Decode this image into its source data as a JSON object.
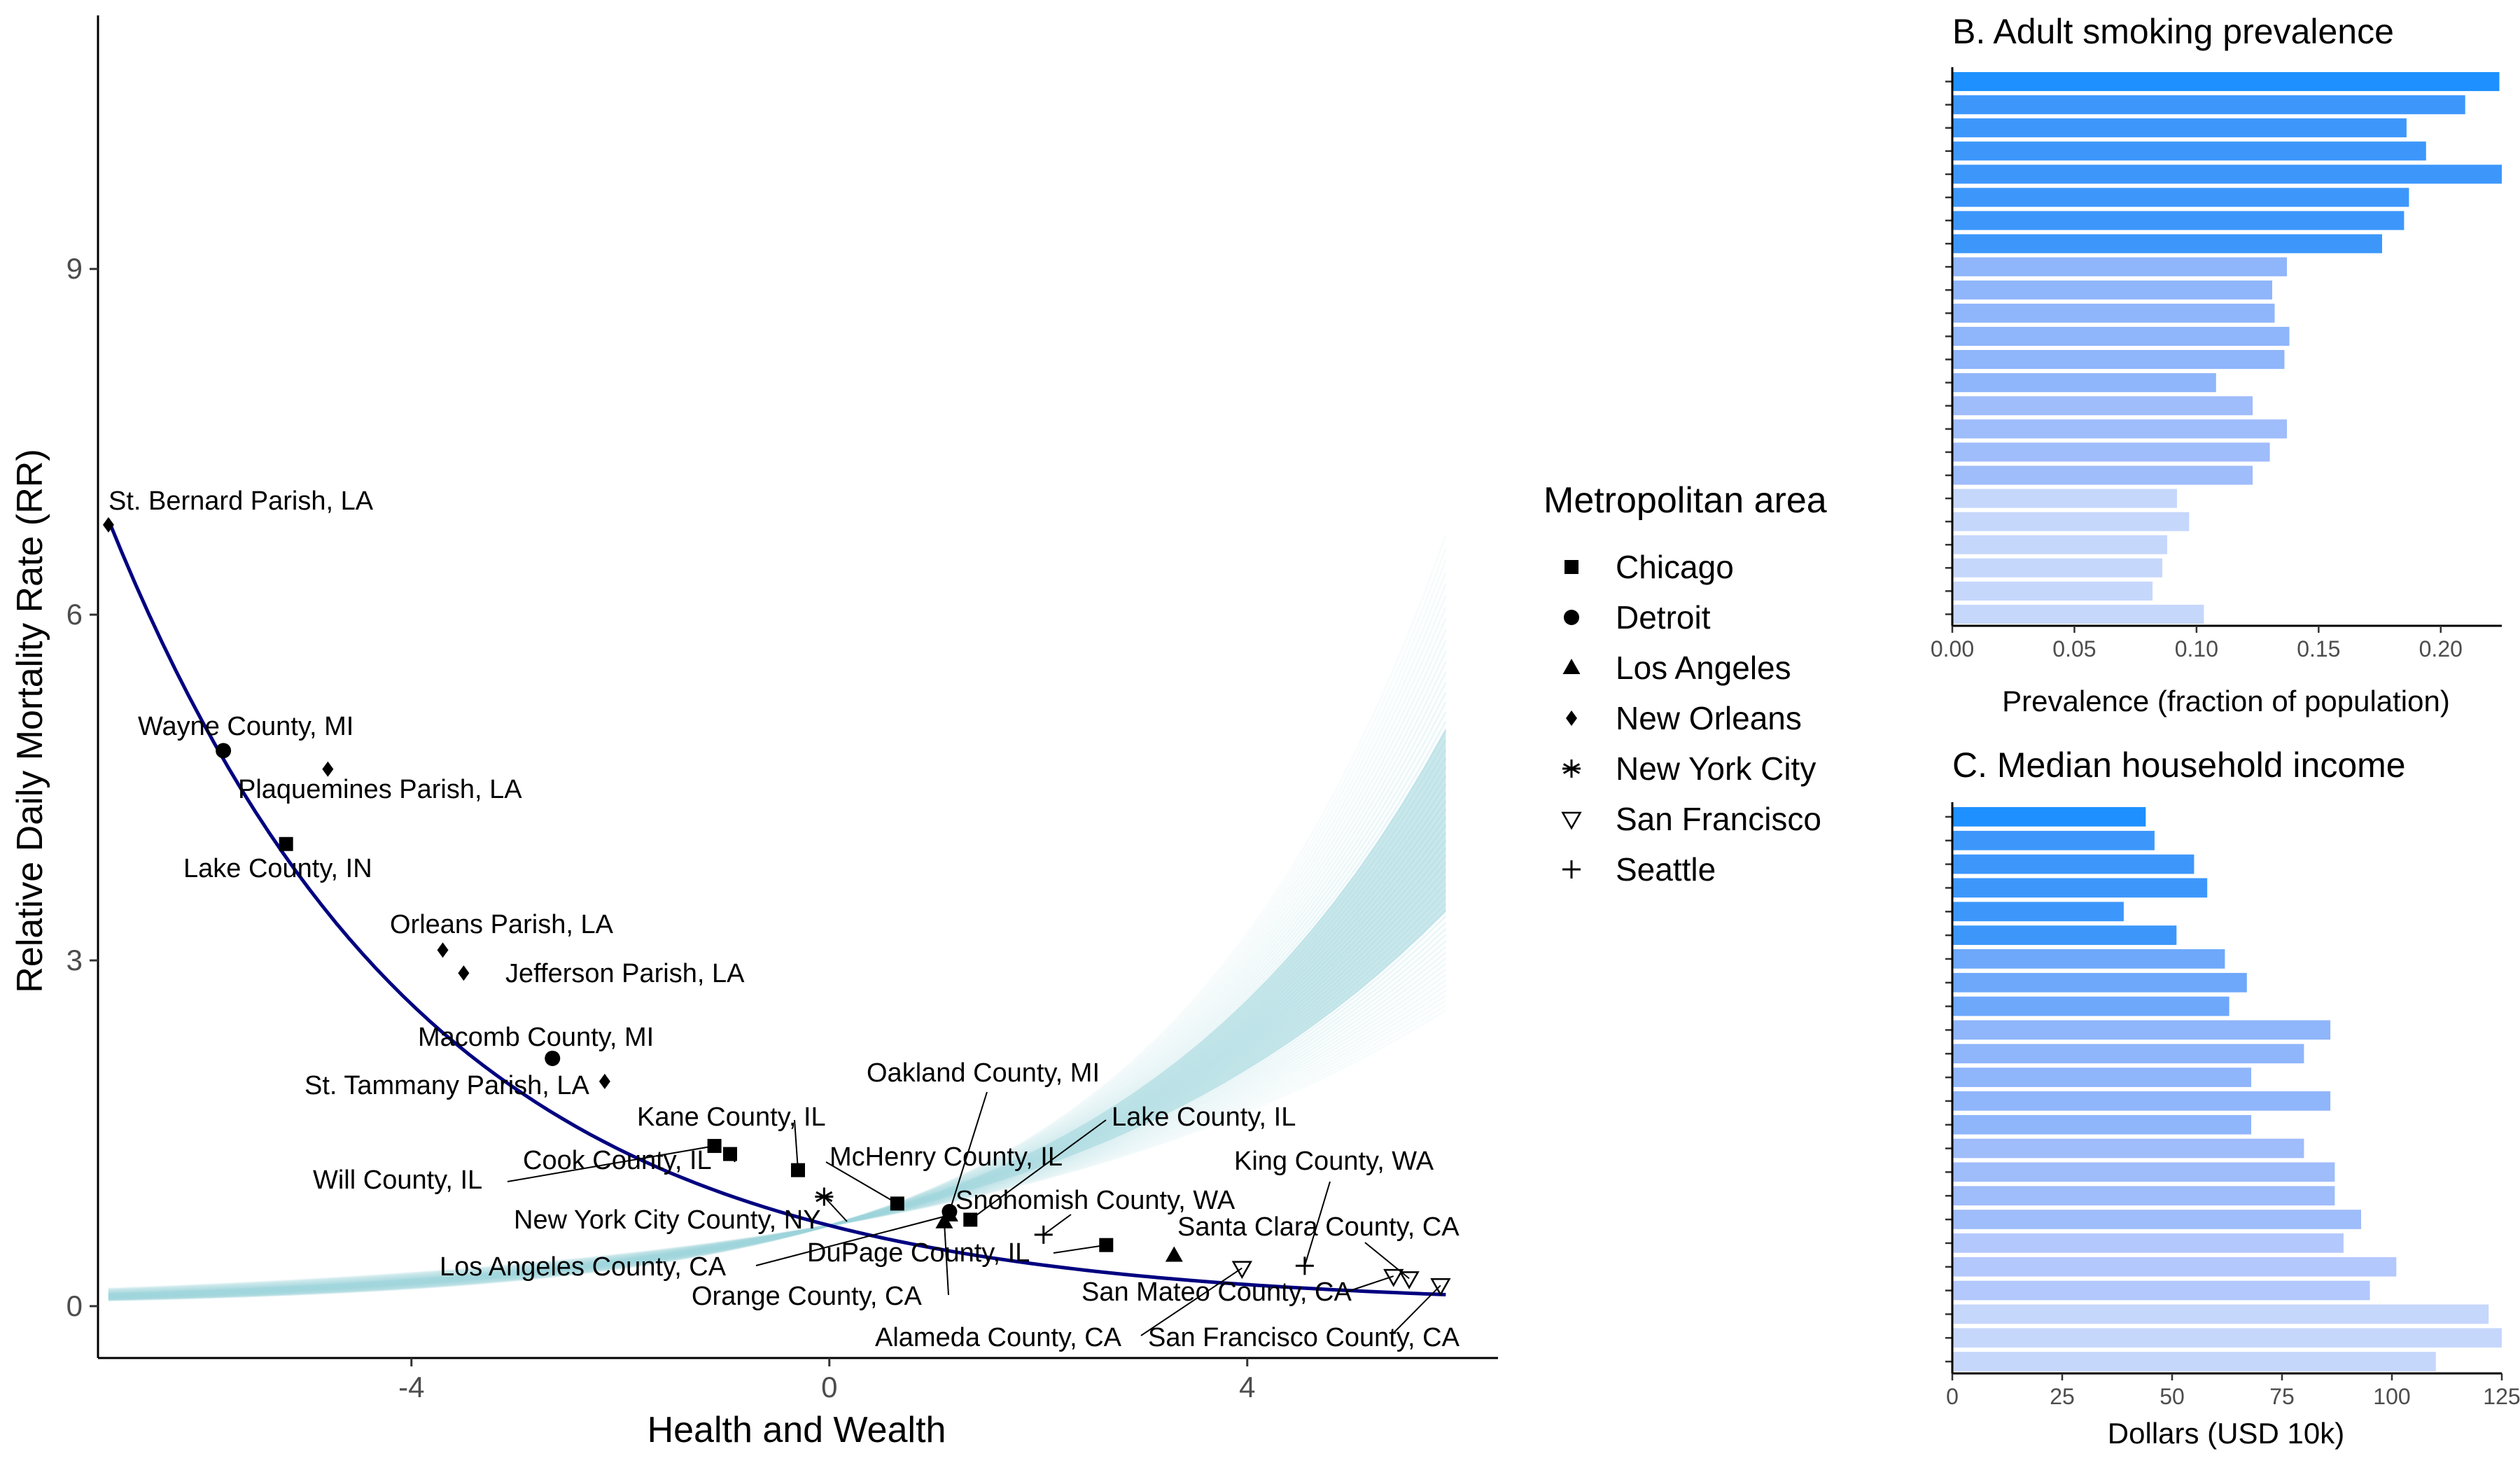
{
  "chart_data": [
    {
      "type": "scatter",
      "xlabel": "Health and Wealth",
      "ylabel": "Relative Daily Mortality Rate (RR)",
      "xlim": [
        -7.0,
        6.4
      ],
      "ylim": [
        -0.45,
        11.2
      ],
      "x_ticks": [
        "-4",
        "0",
        "4"
      ],
      "y_ticks": [
        "0",
        "3",
        "6",
        "9"
      ],
      "x_tick_values": [
        -4,
        0,
        4
      ],
      "y_tick_values": [
        0,
        3,
        6,
        9
      ],
      "grid": false,
      "fit_curve": {
        "a": 0.7,
        "b": -0.33,
        "x_range": [
          -6.9,
          5.9
        ]
      },
      "uncertainty_band": {
        "x_range": [
          -6.9,
          5.9
        ],
        "upper_peak": 9.8,
        "lower_peak": 3.2,
        "color": "#9fd6dc"
      },
      "legend": {
        "title": "Metropolitan area",
        "position": "right",
        "entries": [
          {
            "label": "Chicago",
            "shape": "square"
          },
          {
            "label": "Detroit",
            "shape": "circle"
          },
          {
            "label": "Los Angeles",
            "shape": "triangle"
          },
          {
            "label": "New Orleans",
            "shape": "diamond"
          },
          {
            "label": "New York City",
            "shape": "asterisk"
          },
          {
            "label": "San Francisco",
            "shape": "triangle-down"
          },
          {
            "label": "Seattle",
            "shape": "plus"
          }
        ]
      },
      "points": [
        {
          "label": "St. Bernard Parish, LA",
          "metro": "New Orleans",
          "x": -6.9,
          "y": 6.78
        },
        {
          "label": "Wayne County, MI",
          "metro": "Detroit",
          "x": -5.8,
          "y": 4.82
        },
        {
          "label": "Plaquemines Parish, LA",
          "metro": "New Orleans",
          "x": -4.8,
          "y": 4.66
        },
        {
          "label": "Lake County, IN",
          "metro": "Chicago",
          "x": -5.2,
          "y": 4.01
        },
        {
          "label": "Orleans Parish, LA",
          "metro": "New Orleans",
          "x": -3.7,
          "y": 3.09
        },
        {
          "label": "Jefferson Parish, LA",
          "metro": "New Orleans",
          "x": -3.5,
          "y": 2.89
        },
        {
          "label": "Macomb County, MI",
          "metro": "Detroit",
          "x": -2.65,
          "y": 2.15
        },
        {
          "label": "St. Tammany Parish, LA",
          "metro": "New Orleans",
          "x": -2.15,
          "y": 1.95
        },
        {
          "label": "Will County, IL",
          "metro": "Chicago",
          "x": -1.1,
          "y": 1.39
        },
        {
          "label": "Cook County, IL",
          "metro": "Chicago",
          "x": -0.95,
          "y": 1.32
        },
        {
          "label": "Kane County, IL",
          "metro": "Chicago",
          "x": -0.3,
          "y": 1.18
        },
        {
          "label": "New York City County, NY",
          "metro": "New York City",
          "x": -0.05,
          "y": 0.95
        },
        {
          "label": "Los Angeles County, CA",
          "metro": "Los Angeles",
          "x": 1.15,
          "y": 0.79
        },
        {
          "label": "Oakland County, MI",
          "metro": "Detroit",
          "x": 1.15,
          "y": 0.82
        },
        {
          "label": "McHenry County, IL",
          "metro": "Chicago",
          "x": 0.65,
          "y": 0.89
        },
        {
          "label": "Lake County, IL",
          "metro": "Chicago",
          "x": 1.35,
          "y": 0.75
        },
        {
          "label": "Orange County, CA",
          "metro": "Los Angeles",
          "x": 1.1,
          "y": 0.73
        },
        {
          "label": "Snohomish County, WA",
          "metro": "Seattle",
          "x": 2.05,
          "y": 0.62
        },
        {
          "label": "DuPage County, IL",
          "metro": "Chicago",
          "x": 2.65,
          "y": 0.53
        },
        {
          "label": "Alameda County, CA",
          "metro": "San Francisco",
          "x": 3.95,
          "y": 0.33
        },
        {
          "label": "King County, WA",
          "metro": "Seattle",
          "x": 4.55,
          "y": 0.35
        },
        {
          "label": "Santa Clara County, CA",
          "metro": "San Francisco",
          "x": 5.55,
          "y": 0.24
        },
        {
          "label": "San Mateo County, CA",
          "metro": "San Francisco",
          "x": 5.4,
          "y": 0.26
        },
        {
          "label": "San Francisco County, CA",
          "metro": "San Francisco",
          "x": 5.85,
          "y": 0.18
        },
        {
          "label": "",
          "metro": "Los Angeles",
          "x": 3.3,
          "y": 0.44
        }
      ]
    },
    {
      "type": "bar",
      "orientation": "horizontal",
      "title": "B. Adult smoking prevalence",
      "xlabel": "Prevalence (fraction of population)",
      "xlim": [
        0,
        0.225
      ],
      "x_ticks": [
        "0.00",
        "0.05",
        "0.10",
        "0.15",
        "0.20"
      ],
      "x_tick_values": [
        0,
        0.05,
        0.1,
        0.15,
        0.2
      ],
      "values": [
        0.224,
        0.21,
        0.186,
        0.194,
        0.225,
        0.187,
        0.185,
        0.176,
        0.137,
        0.131,
        0.132,
        0.138,
        0.136,
        0.108,
        0.123,
        0.137,
        0.13,
        0.123,
        0.092,
        0.097,
        0.088,
        0.086,
        0.082,
        0.103
      ],
      "colors": [
        "#1e90ff",
        "#3d97fb",
        "#3d97fb",
        "#3d97fb",
        "#3d97fb",
        "#3d97fb",
        "#3d97fb",
        "#3d97fb",
        "#8fb5fb",
        "#8fb5fb",
        "#8fb5fb",
        "#8fb5fb",
        "#8fb5fb",
        "#8fb5fb",
        "#9fbcfb",
        "#9fbcfb",
        "#9fbcfb",
        "#9fbcfb",
        "#c6d7fc",
        "#c6d7fc",
        "#c6d7fc",
        "#c6d7fc",
        "#c6d7fc",
        "#c6d7fc"
      ]
    },
    {
      "type": "bar",
      "orientation": "horizontal",
      "title": "C. Median household income",
      "xlabel": "Dollars (USD 10k)",
      "xlim": [
        0,
        125
      ],
      "x_ticks": [
        "0",
        "25",
        "50",
        "75",
        "100",
        "125"
      ],
      "x_tick_values": [
        0,
        25,
        50,
        75,
        100,
        125
      ],
      "values": [
        44,
        46,
        55,
        58,
        39,
        51,
        62,
        67,
        63,
        86,
        80,
        68,
        86,
        68,
        80,
        87,
        87,
        93,
        89,
        101,
        95,
        122,
        125,
        110
      ],
      "colors": [
        "#1e90ff",
        "#3d97fb",
        "#3d97fb",
        "#3d97fb",
        "#3d97fb",
        "#3d97fb",
        "#6ea8fb",
        "#6ea8fb",
        "#6ea8fb",
        "#8fb5fb",
        "#8fb5fb",
        "#8fb5fb",
        "#8fb5fb",
        "#8fb5fb",
        "#9fbcfb",
        "#9fbcfb",
        "#9fbcfb",
        "#9fbcfb",
        "#b3c8fc",
        "#b3c8fc",
        "#b3c8fc",
        "#c6d7fc",
        "#c6d7fc",
        "#c6d7fc"
      ]
    }
  ],
  "colors": {
    "curve": "#000080",
    "band": "#9fd6dc",
    "bar_accent": "#1e90ff"
  }
}
